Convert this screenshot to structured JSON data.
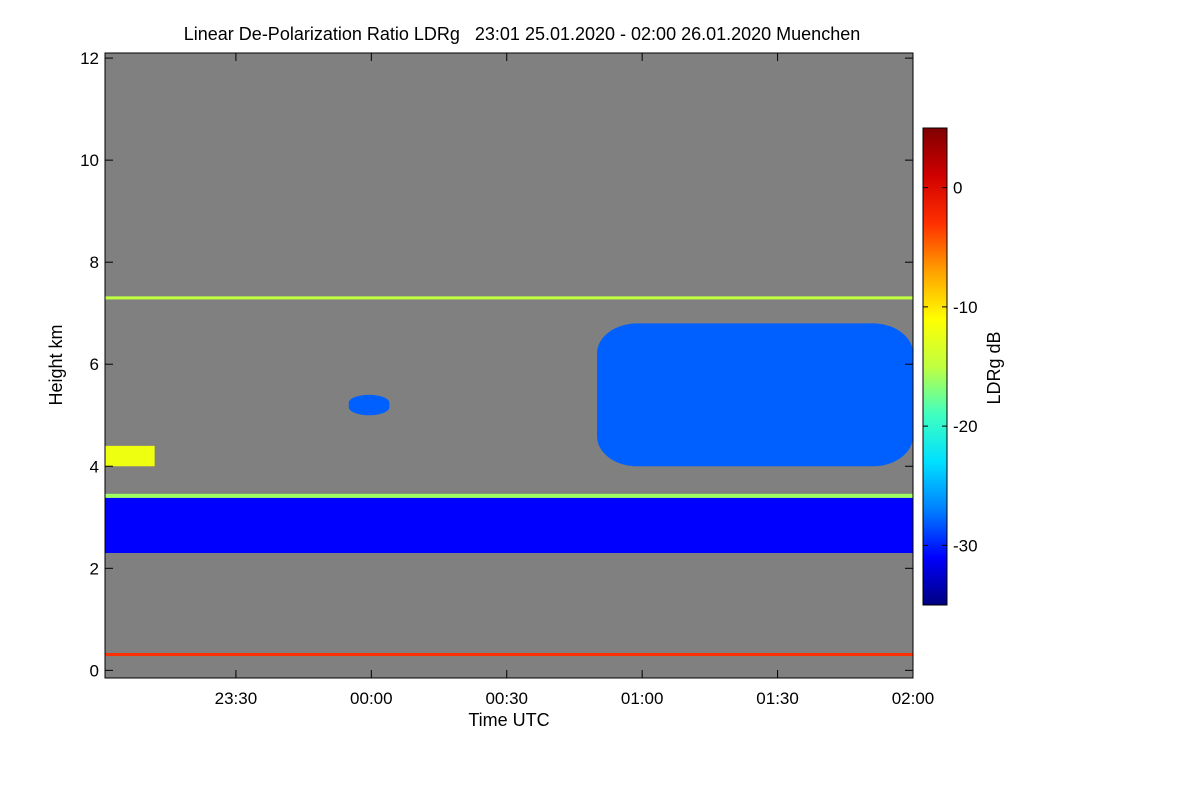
{
  "chart_data": {
    "type": "heatmap",
    "title": "Linear De-Polarization Ratio LDRg   23:01 25.01.2020 - 02:00 26.01.2020 Muenchen",
    "xlabel": "Time UTC",
    "ylabel": "Height km",
    "x_range_minutes": [
      -59,
      120
    ],
    "x_ticks": [
      {
        "label": "23:30",
        "minute": -30
      },
      {
        "label": "00:00",
        "minute": 0
      },
      {
        "label": "00:30",
        "minute": 30
      },
      {
        "label": "01:00",
        "minute": 60
      },
      {
        "label": "01:30",
        "minute": 90
      },
      {
        "label": "02:00",
        "minute": 120
      }
    ],
    "y_range_km": [
      -0.15,
      12.1
    ],
    "y_ticks": [
      0,
      2,
      4,
      6,
      8,
      10,
      12
    ],
    "colorbar": {
      "label": "LDRg dB",
      "range_db": [
        -35,
        5
      ],
      "ticks": [
        0,
        -10,
        -20,
        -30
      ],
      "colors": [
        "#000080",
        "#0000ff",
        "#0080ff",
        "#00e0ff",
        "#40ffc0",
        "#c0ff40",
        "#ffff00",
        "#ffa000",
        "#ff3000",
        "#d00000",
        "#800000"
      ]
    },
    "background_color": "#808080",
    "layers": [
      {
        "name": "near-surface layer",
        "t0": -59,
        "t1": 120,
        "z0": 0.28,
        "z1": 0.34,
        "ldr": -3
      },
      {
        "name": "lower cloud layer",
        "t0": -59,
        "t1": 120,
        "z0": 2.3,
        "z1": 3.4,
        "ldr": -31
      },
      {
        "name": "cloud top edge",
        "t0": -59,
        "t1": 120,
        "z0": 3.38,
        "z1": 3.46,
        "ldr": -16
      },
      {
        "name": "thin layer 7.3 km",
        "t0": -59,
        "t1": 120,
        "z0": 7.27,
        "z1": 7.33,
        "ldr": -15
      },
      {
        "name": "cirrus patch",
        "t0": 50,
        "t1": 120,
        "z0": 4.0,
        "z1": 6.8,
        "ldr": -28
      },
      {
        "name": "small cloud 5.3 km",
        "t0": -5,
        "t1": 4,
        "z0": 5.0,
        "z1": 5.4,
        "ldr": -28
      },
      {
        "name": "speckle layer 4.3 km",
        "t0": -59,
        "t1": -48,
        "z0": 4.0,
        "z1": 4.4,
        "ldr": -12
      }
    ]
  }
}
